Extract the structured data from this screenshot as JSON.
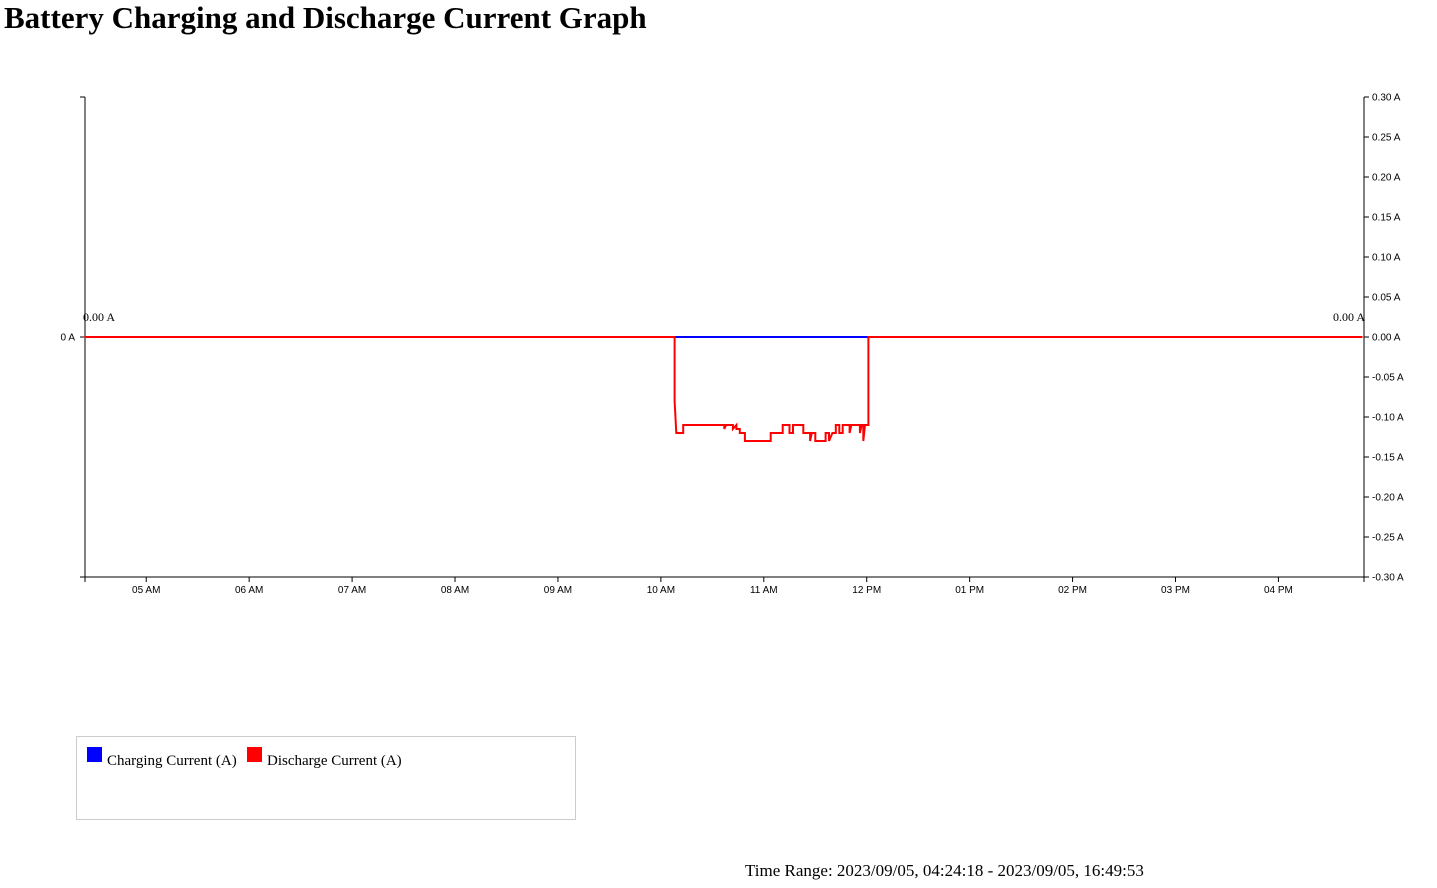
{
  "page": {
    "title": "Battery Charging and Discharge Current Graph"
  },
  "chart_data": {
    "type": "line",
    "title": "Battery Charging and Discharge Current Graph",
    "x_domain": [
      "2023/09/05 04:24:18",
      "2023/09/05 16:49:53"
    ],
    "x_ticks": [
      "05 AM",
      "06 AM",
      "07 AM",
      "08 AM",
      "09 AM",
      "10 AM",
      "11 AM",
      "12 PM",
      "01 PM",
      "02 PM",
      "03 PM",
      "04 PM"
    ],
    "y_left": {
      "ticks": [
        "0 A"
      ],
      "tick_values": [
        0
      ],
      "ylim": [
        -0.3,
        0.3
      ]
    },
    "y_right": {
      "ticks": [
        "0.30 A",
        "0.25 A",
        "0.20 A",
        "0.15 A",
        "0.10 A",
        "0.05 A",
        "0.00 A",
        "-0.05 A",
        "-0.10 A",
        "-0.15 A",
        "-0.20 A",
        "-0.25 A",
        "-0.30 A"
      ],
      "tick_values": [
        0.3,
        0.25,
        0.2,
        0.15,
        0.1,
        0.05,
        0,
        -0.05,
        -0.1,
        -0.15,
        -0.2,
        -0.25,
        -0.3
      ],
      "ylim": [
        -0.3,
        0.3
      ]
    },
    "start_label": "0.00 A",
    "end_label": "0.00 A",
    "series": [
      {
        "name": "Charging Current (A)",
        "color": "#0000ff",
        "points": [
          [
            "04:24",
            0.0
          ],
          [
            "16:49",
            0.0
          ]
        ]
      },
      {
        "name": "Discharge Current (A)",
        "color": "#ff0000",
        "points": [
          [
            "04:24",
            0.0
          ],
          [
            "10:08",
            0.0
          ],
          [
            "10:08",
            -0.08
          ],
          [
            "10:09",
            -0.12
          ],
          [
            "10:13",
            -0.12
          ],
          [
            "10:13",
            -0.11
          ],
          [
            "10:37",
            -0.11
          ],
          [
            "10:37",
            -0.115
          ],
          [
            "10:38",
            -0.11
          ],
          [
            "10:42",
            -0.11
          ],
          [
            "10:42",
            -0.115
          ],
          [
            "10:44",
            -0.11
          ],
          [
            "10:44",
            -0.115
          ],
          [
            "10:46",
            -0.115
          ],
          [
            "10:46",
            -0.12
          ],
          [
            "10:49",
            -0.12
          ],
          [
            "10:49",
            -0.13
          ],
          [
            "11:04",
            -0.13
          ],
          [
            "11:04",
            -0.12
          ],
          [
            "11:11",
            -0.12
          ],
          [
            "11:11",
            -0.11
          ],
          [
            "11:15",
            -0.11
          ],
          [
            "11:15",
            -0.12
          ],
          [
            "11:17",
            -0.12
          ],
          [
            "11:17",
            -0.11
          ],
          [
            "11:23",
            -0.11
          ],
          [
            "11:23",
            -0.12
          ],
          [
            "11:27",
            -0.12
          ],
          [
            "11:27",
            -0.13
          ],
          [
            "11:28",
            -0.12
          ],
          [
            "11:30",
            -0.12
          ],
          [
            "11:30",
            -0.13
          ],
          [
            "11:36",
            -0.13
          ],
          [
            "11:36",
            -0.12
          ],
          [
            "11:38",
            -0.12
          ],
          [
            "11:38",
            -0.13
          ],
          [
            "11:40",
            -0.12
          ],
          [
            "11:42",
            -0.12
          ],
          [
            "11:42",
            -0.11
          ],
          [
            "11:44",
            -0.11
          ],
          [
            "11:44",
            -0.12
          ],
          [
            "11:46",
            -0.12
          ],
          [
            "11:46",
            -0.11
          ],
          [
            "11:50",
            -0.11
          ],
          [
            "11:50",
            -0.12
          ],
          [
            "11:51",
            -0.11
          ],
          [
            "11:56",
            -0.11
          ],
          [
            "11:56",
            -0.12
          ],
          [
            "11:57",
            -0.11
          ],
          [
            "11:58",
            -0.11
          ],
          [
            "11:58",
            -0.13
          ],
          [
            "11:59",
            -0.11
          ],
          [
            "12:01",
            -0.11
          ],
          [
            "12:01",
            0.0
          ],
          [
            "16:49",
            0.0
          ]
        ]
      }
    ],
    "legend": {
      "placement": "bottom-left",
      "items": [
        {
          "label": "Charging Current (A)",
          "color": "#0000ff"
        },
        {
          "label": "Discharge Current (A)",
          "color": "#ff0000"
        }
      ]
    },
    "grid": false
  },
  "time_range": {
    "label": "Time Range: 2023/09/05, 04:24:18 - 2023/09/05, 16:49:53"
  }
}
